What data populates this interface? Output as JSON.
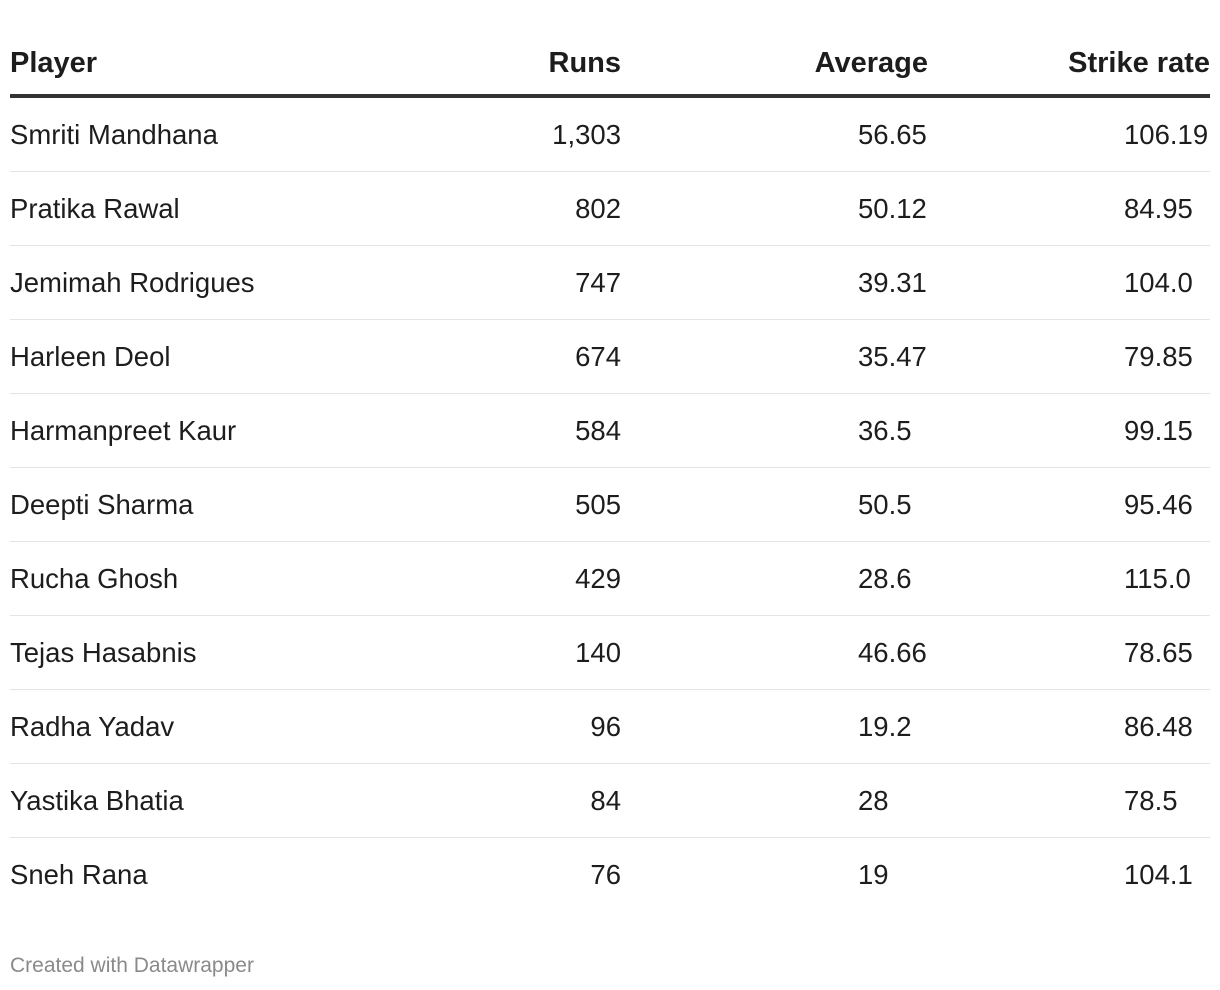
{
  "chart_data": {
    "type": "table",
    "columns": [
      "Player",
      "Runs",
      "Average",
      "Strike rate"
    ],
    "rows": [
      {
        "player": "Smriti Mandhana",
        "runs": "1,303",
        "average": "56.65",
        "strike_rate": "106.19"
      },
      {
        "player": "Pratika Rawal",
        "runs": "802",
        "average": "50.12",
        "strike_rate": "84.95"
      },
      {
        "player": "Jemimah Rodrigues",
        "runs": "747",
        "average": "39.31",
        "strike_rate": "104.0"
      },
      {
        "player": "Harleen Deol",
        "runs": "674",
        "average": "35.47",
        "strike_rate": "79.85"
      },
      {
        "player": "Harmanpreet Kaur",
        "runs": "584",
        "average": "36.5",
        "strike_rate": "99.15"
      },
      {
        "player": "Deepti Sharma",
        "runs": "505",
        "average": "50.5",
        "strike_rate": "95.46"
      },
      {
        "player": "Rucha Ghosh",
        "runs": "429",
        "average": "28.6",
        "strike_rate": "115.0"
      },
      {
        "player": "Tejas Hasabnis",
        "runs": "140",
        "average": "46.66",
        "strike_rate": "78.65"
      },
      {
        "player": "Radha Yadav",
        "runs": "96",
        "average": "19.2",
        "strike_rate": "86.48"
      },
      {
        "player": "Yastika Bhatia",
        "runs": "84",
        "average": "28",
        "strike_rate": "78.5"
      },
      {
        "player": "Sneh Rana",
        "runs": "76",
        "average": "19",
        "strike_rate": "104.1"
      }
    ]
  },
  "footer": {
    "credit": "Created with Datawrapper"
  },
  "colors": {
    "header_rule": "#333333",
    "row_divider": "#e4e4e4",
    "text": "#1d1d1d",
    "footer_text": "#8a8a8a"
  }
}
